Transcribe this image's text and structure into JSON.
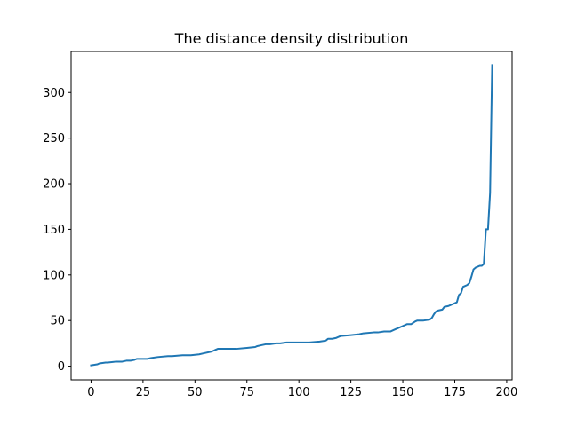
{
  "chart_data": {
    "type": "line",
    "title": "The distance density distribution",
    "xlabel": "",
    "ylabel": "",
    "xlim": [
      -9.6,
      202.6
    ],
    "ylim": [
      -15,
      345
    ],
    "xticks": [
      0,
      25,
      50,
      75,
      100,
      125,
      150,
      175,
      200
    ],
    "yticks": [
      0,
      50,
      100,
      150,
      200,
      250,
      300
    ],
    "grid": false,
    "legend": "none",
    "series": [
      {
        "color": "#1f77b4",
        "x": [
          0,
          3,
          4,
          7,
          8,
          12,
          15,
          17,
          19,
          21,
          22,
          27,
          29,
          32,
          37,
          39,
          44,
          48,
          52,
          54,
          58,
          59,
          60,
          61,
          70,
          75,
          79,
          80,
          82,
          84,
          86,
          89,
          91,
          94,
          96,
          100,
          105,
          110,
          113,
          114,
          116,
          118,
          120,
          125,
          129,
          131,
          136,
          138,
          141,
          144,
          146,
          148,
          150,
          152,
          154,
          156,
          157,
          160,
          163,
          164,
          165,
          166,
          167,
          169,
          170,
          172,
          173,
          175,
          176,
          177,
          178,
          179,
          181,
          182,
          183,
          184,
          185,
          187,
          188,
          189,
          190,
          191,
          192,
          193
        ],
        "y": [
          1,
          2,
          3,
          4,
          4,
          5,
          5,
          6,
          6,
          7,
          8,
          8,
          9,
          10,
          11,
          11,
          12,
          12,
          13,
          14,
          16,
          17,
          18,
          19,
          19,
          20,
          21,
          22,
          23,
          24,
          24,
          25,
          25,
          26,
          26,
          26,
          26,
          27,
          28,
          30,
          30,
          31,
          33,
          34,
          35,
          36,
          37,
          37,
          38,
          38,
          40,
          42,
          44,
          46,
          46,
          49,
          50,
          50,
          51,
          53,
          57,
          60,
          61,
          62,
          65,
          66,
          67,
          69,
          70,
          78,
          80,
          87,
          89,
          91,
          98,
          106,
          108,
          110,
          110,
          112,
          150,
          150,
          190,
          330
        ]
      }
    ]
  }
}
